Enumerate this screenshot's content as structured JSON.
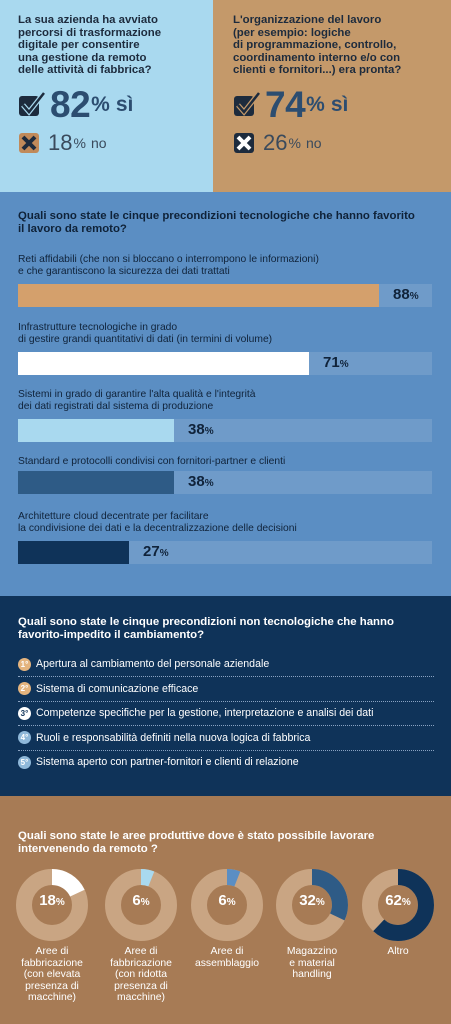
{
  "top": {
    "left": {
      "question": "La sua azienda ha avviato\npercorsi di trasformazione\ndigitale per consentire\nuna gestione da remoto\ndelle attività di fabbrica?",
      "yes_value": "82",
      "yes_pct": "%",
      "yes_label": "sì",
      "no_value": "18",
      "no_pct": "%",
      "no_label": "no"
    },
    "right": {
      "question": "L'organizzazione del lavoro\n(per esempio: logiche\ndi programmazione, controllo,\ncoordinamento interno e/o con\nclienti e fornitori...) era pronta?",
      "yes_value": "74",
      "yes_pct": "%",
      "yes_label": "sì",
      "no_value": "26",
      "no_pct": "%",
      "no_label": "no"
    },
    "icons": {
      "yes": "check-icon",
      "no": "cross-icon"
    }
  },
  "tech": {
    "title": "Quali sono state le cinque precondizioni tecnologiche che hanno favorito\nil lavoro da remoto?",
    "items": [
      {
        "label": "Reti affidabili (che non si bloccano o interrompono le informazioni)\ne che garantiscono la sicurezza dei dati trattati",
        "value": 88,
        "value_text": "88",
        "pct": "%",
        "color": "#d4a06c"
      },
      {
        "label": "Infrastrutture tecnologiche in grado\ndi gestire grandi quantitativi di dati (in termini di volume)",
        "value": 71,
        "value_text": "71",
        "pct": "%",
        "color": "#ffffff"
      },
      {
        "label": "Sistemi in grado di garantire l'alta qualità e l'integrità\ndei dati registrati dal sistema di produzione",
        "value": 38,
        "value_text": "38",
        "pct": "%",
        "color": "#a9d9ef"
      },
      {
        "label": "Standard e protocolli condivisi con fornitori-partner e clienti",
        "value": 38,
        "value_text": "38",
        "pct": "%",
        "color": "#2e5b86"
      },
      {
        "label": "Architetture cloud decentrate per facilitare\nla condivisione dei dati e la decentralizzazione delle decisioni",
        "value": 27,
        "value_text": "27",
        "pct": "%",
        "color": "#0f3359"
      }
    ]
  },
  "nontech": {
    "title": "Quali sono state le cinque precondizioni non tecnologiche che hanno\nfavorito-impedito il cambiamento?",
    "items": [
      {
        "num": "1°",
        "label": "Apertura al cambiamento del personale aziendale",
        "color": "#e4b47e"
      },
      {
        "num": "2°",
        "label": "Sistema di comunicazione efficace",
        "color": "#e4b47e"
      },
      {
        "num": "3°",
        "label": "Competenze specifiche per la gestione, interpretazione e analisi dei dati",
        "color": "#ffffff"
      },
      {
        "num": "4°",
        "label": "Ruoli e responsabilità definiti nella nuova logica di fabbrica",
        "color": "#8fb8d9"
      },
      {
        "num": "5°",
        "label": "Sistema aperto con partner-fornitori e clienti di relazione",
        "color": "#8fb8d9"
      }
    ]
  },
  "areas": {
    "title": "Quali sono state le aree produttive dove è stato possibile lavorare\nintervenendo da remoto ?",
    "items": [
      {
        "value": 18,
        "value_text": "18",
        "pct": "%",
        "label": "Aree di\nfabbricazione\n(con elevata\npresenza di\nmacchine)",
        "color": "#ffffff"
      },
      {
        "value": 6,
        "value_text": "6",
        "pct": "%",
        "label": "Aree di\nfabbricazione\n(con ridotta\npresenza di\nmacchine)",
        "color": "#a9d9ef"
      },
      {
        "value": 6,
        "value_text": "6",
        "pct": "%",
        "label": "Aree di\nassemblaggio",
        "color": "#5b8ec3"
      },
      {
        "value": 32,
        "value_text": "32",
        "pct": "%",
        "label": "Magazzino\ne material\nhandling",
        "color": "#2e5b86"
      },
      {
        "value": 62,
        "value_text": "62",
        "pct": "%",
        "label": "Altro",
        "color": "#0f3359"
      }
    ],
    "ring_bg": "#c9a583",
    "ring_inner": "#a77b55"
  }
}
